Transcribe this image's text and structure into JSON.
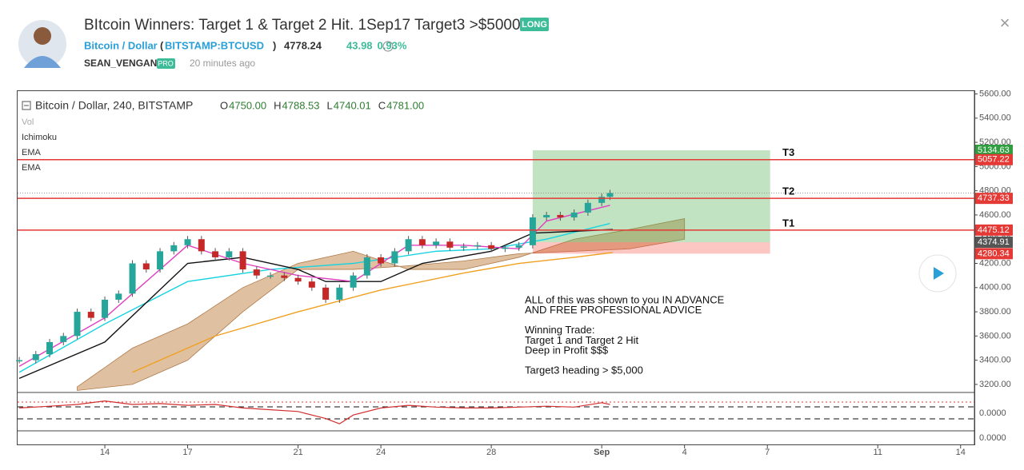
{
  "header": {
    "title": "BItcoin Winners: Target 1 & Target 2 Hit. 1Sep17 Target3 >$5000",
    "badge": "LONG",
    "symbol_name": "Bitcoin / Dollar",
    "symbol_open": "(",
    "symbol": "BITSTAMP:BTCUSD",
    "symbol_close": ")",
    "price": "4778.24",
    "change": "43.98",
    "change_pct": "0.93%",
    "author": "SEAN_VENGAN",
    "author_badge": "PRO",
    "time": "20 minutes ago",
    "close": "×"
  },
  "chart_data": {
    "type": "candlestick",
    "title": "Bitcoin / Dollar, 240, BITSTAMP",
    "ohlc": [
      {
        "label": "O",
        "value": "4750.00"
      },
      {
        "label": "H",
        "value": "4788.53"
      },
      {
        "label": "L",
        "value": "4740.01"
      },
      {
        "label": "C",
        "value": "4781.00"
      }
    ],
    "indicators": [
      "Vol",
      "Ichimoku",
      "EMA",
      "EMA"
    ],
    "x": [
      10.9,
      11.5,
      12,
      12.5,
      13,
      13.5,
      14,
      14.5,
      15,
      15.5,
      16,
      16.5,
      17,
      17.5,
      18,
      18.5,
      19,
      19.5,
      20,
      20.5,
      21,
      21.5,
      22,
      22.5,
      23,
      23.5,
      24,
      24.5,
      25,
      25.5,
      26,
      26.5,
      27,
      27.5,
      28,
      28.5,
      29,
      29.5,
      30,
      30.5,
      31,
      31.5,
      32,
      32.3
    ],
    "close": [
      3400,
      3450,
      3550,
      3600,
      3800,
      3750,
      3900,
      3950,
      4200,
      4150,
      4300,
      4350,
      4400,
      4300,
      4250,
      4300,
      4150,
      4100,
      4100,
      4080,
      4050,
      4000,
      3900,
      4000,
      4100,
      4250,
      4200,
      4300,
      4400,
      4350,
      4380,
      4330,
      4340,
      4350,
      4320,
      4330,
      4350,
      4580,
      4600,
      4580,
      4620,
      4700,
      4750,
      4781
    ],
    "up_color": "#26a69a",
    "down_color": "#c62828",
    "lines": [
      {
        "name": "EMA",
        "color": "#19d3e0",
        "x": [
          10.9,
          14,
          17,
          20,
          23,
          26,
          28,
          30,
          32.3
        ],
        "values": [
          3300,
          3700,
          4050,
          4150,
          4200,
          4300,
          4320,
          4400,
          4530
        ]
      },
      {
        "name": "EMA",
        "color": "#f0a020",
        "x": [
          15,
          18,
          21,
          24,
          27,
          29,
          31,
          32.4
        ],
        "values": [
          3300,
          3600,
          3800,
          3980,
          4120,
          4200,
          4250,
          4290
        ]
      },
      {
        "name": "Ichimoku",
        "color": "#111111",
        "x": [
          10.9,
          14,
          17,
          19,
          21,
          22,
          24,
          25.5,
          28,
          29.5,
          32.4
        ],
        "values": [
          3250,
          3550,
          4200,
          4250,
          4150,
          4050,
          4050,
          4200,
          4300,
          4450,
          4480
        ]
      },
      {
        "name": "Ichimoku",
        "color": "#e040c0",
        "x": [
          10.9,
          14,
          17,
          19,
          21,
          23,
          25,
          27,
          29,
          30,
          32.3
        ],
        "values": [
          3350,
          3750,
          4350,
          4200,
          4100,
          4050,
          4350,
          4350,
          4320,
          4550,
          4680
        ]
      }
    ],
    "cloud": {
      "color": "#d2a679",
      "x": [
        13,
        15,
        17,
        19,
        21,
        23,
        25,
        27,
        29,
        31,
        33,
        35
      ],
      "span_a": [
        3180,
        3500,
        3700,
        4000,
        4200,
        4300,
        4150,
        4150,
        4250,
        4400,
        4480,
        4570
      ],
      "span_b": [
        3150,
        3200,
        3400,
        3800,
        4150,
        4150,
        4180,
        4220,
        4280,
        4300,
        4320,
        4400
      ]
    },
    "levels": [
      {
        "name": "T1",
        "value": 4475.12
      },
      {
        "name": "T2",
        "value": 4737.33
      },
      {
        "name": "T3",
        "value": 5057.22
      }
    ],
    "position": {
      "x": [
        29.5,
        38.1
      ],
      "target": 5134.63,
      "entry": 4374.91,
      "stop": 4280.34
    },
    "last_price": 4781,
    "price_labels": [
      {
        "value": 5134.63,
        "color": "#2e9e3e"
      },
      {
        "value": 5057.22,
        "color": "#e53935"
      },
      {
        "value": 4737.33,
        "color": "#e53935"
      },
      {
        "value": 4475.12,
        "color": "#e53935"
      },
      {
        "value": 4374.91,
        "color": "#555555"
      },
      {
        "value": 4280.34,
        "color": "#e53935"
      }
    ],
    "annotation": [
      "ALL of this was shown to you IN ADVANCE",
      "AND FREE PROFESSIONAL ADVICE",
      "",
      "Winning Trade:",
      "Target 1 and Target 2 Hit",
      "Deep in Profit $$$",
      "",
      "Target3 heading > $5,000"
    ],
    "xlim": [
      10.84,
      45.5
    ],
    "ylim": [
      3140,
      5630
    ],
    "xticks": [
      14,
      17,
      21,
      24,
      28,
      {
        "value": 32,
        "label": "Sep"
      },
      {
        "value": 35,
        "label": "4"
      },
      {
        "value": 38,
        "label": "7"
      },
      {
        "value": 42,
        "label": "11"
      },
      {
        "value": 45,
        "label": "14"
      }
    ],
    "yticks": [
      {
        "value": 3200,
        "label": "3200.00"
      },
      {
        "value": 3400,
        "label": "3400.00"
      },
      {
        "value": 3600,
        "label": "3600.00"
      },
      {
        "value": 3800,
        "label": "3800.00"
      },
      {
        "value": 4000,
        "label": "4000.00"
      },
      {
        "value": 4200,
        "label": "4200.00"
      },
      {
        "value": 4400,
        "label": "4400.00"
      },
      {
        "value": 4600,
        "label": "4600.00"
      },
      {
        "value": 4800,
        "label": "4800.00"
      },
      {
        "value": 5000,
        "label": "5000.00"
      },
      {
        "value": 5200,
        "label": "5200.00"
      },
      {
        "value": 5400,
        "label": "5400.00"
      },
      {
        "value": 5600,
        "label": "5600.00"
      }
    ],
    "oscillator": {
      "color": "#d32f2f",
      "ylim": [
        -1,
        1
      ],
      "x": [
        10.9,
        12,
        13,
        14,
        15,
        16,
        17,
        18,
        19,
        20,
        21,
        22,
        22.5,
        23,
        24,
        25,
        26,
        27,
        28,
        29,
        30,
        31,
        32,
        32.3
      ],
      "values": [
        0.3,
        0.4,
        0.5,
        0.7,
        0.5,
        0.55,
        0.45,
        0.5,
        0.3,
        0.2,
        0.1,
        -0.3,
        -0.6,
        -0.1,
        0.3,
        0.45,
        0.35,
        0.3,
        0.3,
        0.35,
        0.4,
        0.35,
        0.6,
        0.5
      ]
    },
    "osc_labels": [
      "0.0000",
      "0.0000"
    ]
  }
}
